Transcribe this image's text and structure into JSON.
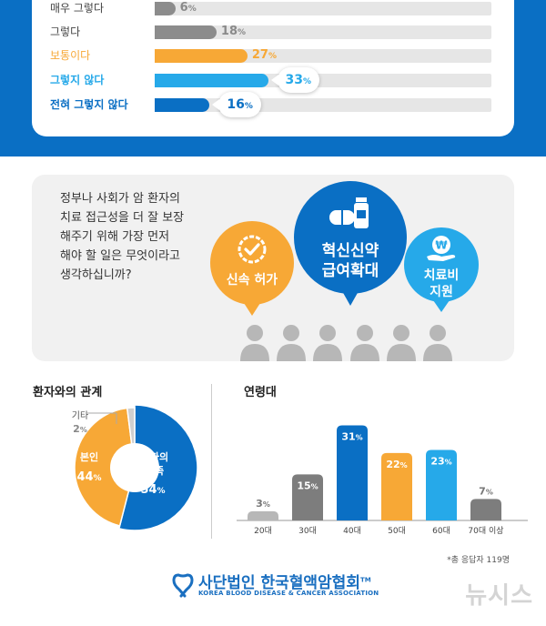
{
  "chart_data": [
    {
      "type": "bar",
      "orientation": "horizontal",
      "categories": [
        "매우 그렇다",
        "그렇다",
        "보통이다",
        "그렇지 않다",
        "전혀 그렇지 않다"
      ],
      "values": [
        6,
        18,
        27,
        33,
        16
      ],
      "value_suffix": "%",
      "xlim": [
        0,
        100
      ]
    },
    {
      "type": "pie",
      "title": "환자와의 관계",
      "labels": [
        "환자의 가족",
        "본인",
        "기타"
      ],
      "values": [
        54,
        44,
        2
      ],
      "value_suffix": "%"
    },
    {
      "type": "bar",
      "title": "연령대",
      "categories": [
        "20대",
        "30대",
        "40대",
        "50대",
        "60대",
        "70대 이상"
      ],
      "values": [
        3,
        15,
        31,
        22,
        23,
        7
      ],
      "value_suffix": "%",
      "ylim": [
        0,
        35
      ]
    }
  ],
  "survey": {
    "rows": [
      {
        "label": "매우 그렇다",
        "value": "6",
        "color": "#8c8c8c",
        "style": "plain"
      },
      {
        "label": "그렇다",
        "value": "18",
        "color": "#8c8c8c",
        "style": "plain"
      },
      {
        "label": "보통이다",
        "value": "27",
        "color": "#f7a836",
        "style": "plain"
      },
      {
        "label": "그렇지 않다",
        "value": "33",
        "color": "#26a9e9",
        "style": "bubble"
      },
      {
        "label": "전혀 그렇지 않다",
        "value": "16",
        "color": "#0a6fc4",
        "style": "bubble"
      }
    ],
    "percent_symbol": "%"
  },
  "question": {
    "lines": [
      "정부나 사회가 암 환자의",
      "치료 접근성을 더 잘 보장",
      "해주기 위해 가장 먼저",
      "해야 할 일은 무엇이라고",
      "생각하십니까?"
    ],
    "answers": {
      "fast_approval": "신속 허가",
      "new_drug_line1": "혁신신약",
      "new_drug_line2": "급여확대",
      "support_line1": "치료비",
      "support_line2": "지원",
      "won_symbol": "₩"
    }
  },
  "relation": {
    "title": "환자와의 관계",
    "family_line1": "환자의",
    "family_line2": "가족",
    "family_value": "54",
    "self_label": "본인",
    "self_value": "44",
    "other_label": "기타",
    "other_value": "2"
  },
  "age": {
    "title": "연령대"
  },
  "colors": {
    "blue": "#0a6fc4",
    "sky": "#26a9e9",
    "orange": "#f7a836",
    "gray": "#7d7d7d",
    "light_gray": "#b7b7b7"
  },
  "footer": {
    "note": "*총 응답자 119명",
    "org_name": "사단법인 한국혈액암협회",
    "org_tm": "TM",
    "org_english": "KOREA BLOOD DISEASE & CANCER ASSOCIATION",
    "watermark": "뉴시스"
  }
}
